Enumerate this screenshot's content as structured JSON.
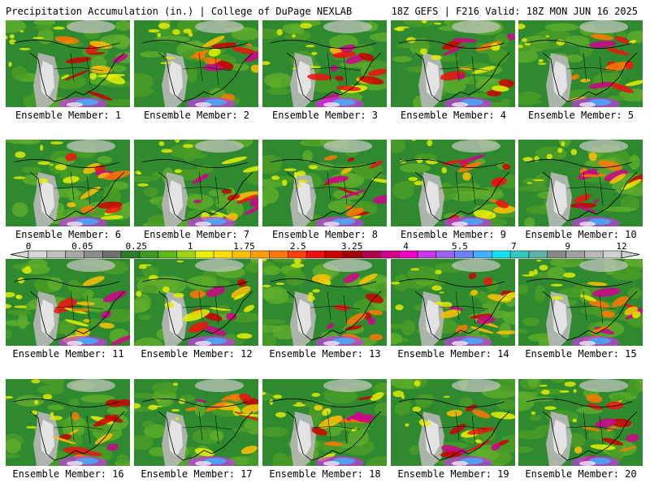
{
  "header": {
    "left": "Precipitation Accumulation (in.) | College of DuPage NEXLAB",
    "right": "18Z GEFS | F216 Valid: 18Z MON JUN 16 2025"
  },
  "panels": [
    {
      "label": "Ensemble Member: 1"
    },
    {
      "label": "Ensemble Member: 2"
    },
    {
      "label": "Ensemble Member: 3"
    },
    {
      "label": "Ensemble Member: 4"
    },
    {
      "label": "Ensemble Member: 5"
    },
    {
      "label": "Ensemble Member: 6"
    },
    {
      "label": "Ensemble Member: 7"
    },
    {
      "label": "Ensemble Member: 8"
    },
    {
      "label": "Ensemble Member: 9"
    },
    {
      "label": "Ensemble Member: 10"
    },
    {
      "label": "Ensemble Member: 11"
    },
    {
      "label": "Ensemble Member: 12"
    },
    {
      "label": "Ensemble Member: 13"
    },
    {
      "label": "Ensemble Member: 14"
    },
    {
      "label": "Ensemble Member: 15"
    },
    {
      "label": "Ensemble Member: 16"
    },
    {
      "label": "Ensemble Member: 17"
    },
    {
      "label": "Ensemble Member: 18"
    },
    {
      "label": "Ensemble Member: 19"
    },
    {
      "label": "Ensemble Member: 20"
    }
  ],
  "legend": {
    "tick_labels": [
      "0",
      "0.05",
      "0.25",
      "1",
      "1.75",
      "2.5",
      "3.25",
      "4",
      "5.5",
      "7",
      "9",
      "12"
    ],
    "colors": [
      "#d8d8d8",
      "#c0c0c0",
      "#a8a8a8",
      "#8c8c8c",
      "#707070",
      "#2e7d2e",
      "#3f9a1f",
      "#5fb81a",
      "#9ed60e",
      "#e8f000",
      "#ffe000",
      "#ffc000",
      "#ffa000",
      "#ff7800",
      "#ff4000",
      "#ee1010",
      "#cc0000",
      "#a00000",
      "#b0004c",
      "#d0008c",
      "#f000c0",
      "#c838e8",
      "#9a64f0",
      "#6a84f8",
      "#40b0ff",
      "#10e0f0",
      "#30c8c0",
      "#60b0a8",
      "#888888",
      "#a0a0a0",
      "#b8b8b8",
      "#d0d0d0"
    ]
  }
}
